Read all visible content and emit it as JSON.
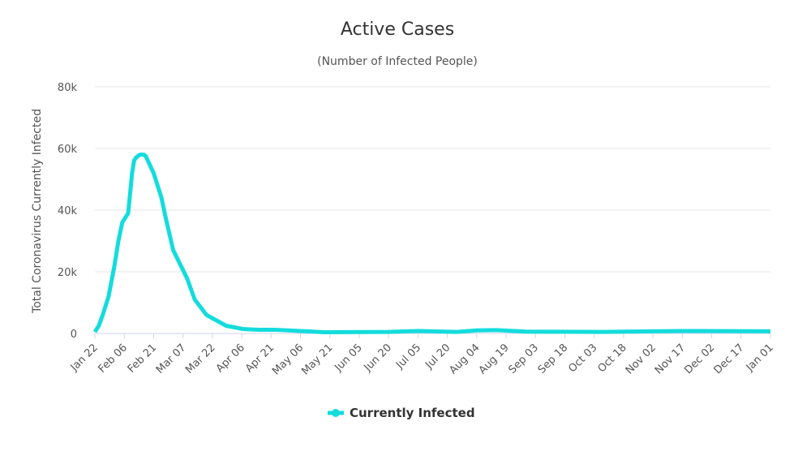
{
  "chart_data": {
    "type": "line",
    "title": "Active Cases",
    "subtitle": "(Number of Infected People)",
    "y_label": "Total Coronavirus Currently Infected",
    "xlim": [
      0,
      345
    ],
    "xticks": [
      {
        "value": 0,
        "label": "Jan 22"
      },
      {
        "value": 15,
        "label": "Feb 06"
      },
      {
        "value": 30,
        "label": "Feb 21"
      },
      {
        "value": 45,
        "label": "Mar 07"
      },
      {
        "value": 60,
        "label": "Mar 22"
      },
      {
        "value": 75,
        "label": "Apr 06"
      },
      {
        "value": 90,
        "label": "Apr 21"
      },
      {
        "value": 105,
        "label": "May 06"
      },
      {
        "value": 120,
        "label": "May 21"
      },
      {
        "value": 135,
        "label": "Jun 05"
      },
      {
        "value": 150,
        "label": "Jun 20"
      },
      {
        "value": 165,
        "label": "Jul 05"
      },
      {
        "value": 180,
        "label": "Jul 20"
      },
      {
        "value": 195,
        "label": "Aug 04"
      },
      {
        "value": 210,
        "label": "Aug 19"
      },
      {
        "value": 225,
        "label": "Sep 03"
      },
      {
        "value": 240,
        "label": "Sep 18"
      },
      {
        "value": 255,
        "label": "Oct 03"
      },
      {
        "value": 270,
        "label": "Oct 18"
      },
      {
        "value": 285,
        "label": "Nov 02"
      },
      {
        "value": 300,
        "label": "Nov 17"
      },
      {
        "value": 315,
        "label": "Dec 02"
      },
      {
        "value": 330,
        "label": "Dec 17"
      },
      {
        "value": 345,
        "label": "Jan 01"
      }
    ],
    "ylim": [
      0,
      80000
    ],
    "yticks": [
      0,
      {
        "value": 20000,
        "label": "20k"
      },
      {
        "value": 40000,
        "label": "40k"
      },
      {
        "value": 60000,
        "label": "60k"
      },
      {
        "value": 80000,
        "label": "80k"
      }
    ],
    "grid": true,
    "x": [
      0,
      2,
      4,
      7,
      10,
      12,
      14,
      17,
      19,
      20,
      21,
      23,
      25,
      26,
      30,
      34,
      36,
      40,
      47,
      51,
      57,
      67,
      76,
      84,
      92,
      105,
      117,
      150,
      165,
      185,
      195,
      205,
      220,
      260,
      300,
      345
    ],
    "series": [
      {
        "name": "Currently Infected",
        "color": "#14dcdc",
        "values": [
          500,
          2500,
          6000,
          12000,
          22000,
          30000,
          36000,
          39000,
          52000,
          56000,
          57000,
          58000,
          58000,
          57500,
          52000,
          44000,
          38000,
          27000,
          18000,
          11000,
          6000,
          2500,
          1400,
          1200,
          1200,
          800,
          400,
          500,
          800,
          500,
          1000,
          1100,
          600,
          500,
          800,
          700
        ]
      }
    ]
  }
}
